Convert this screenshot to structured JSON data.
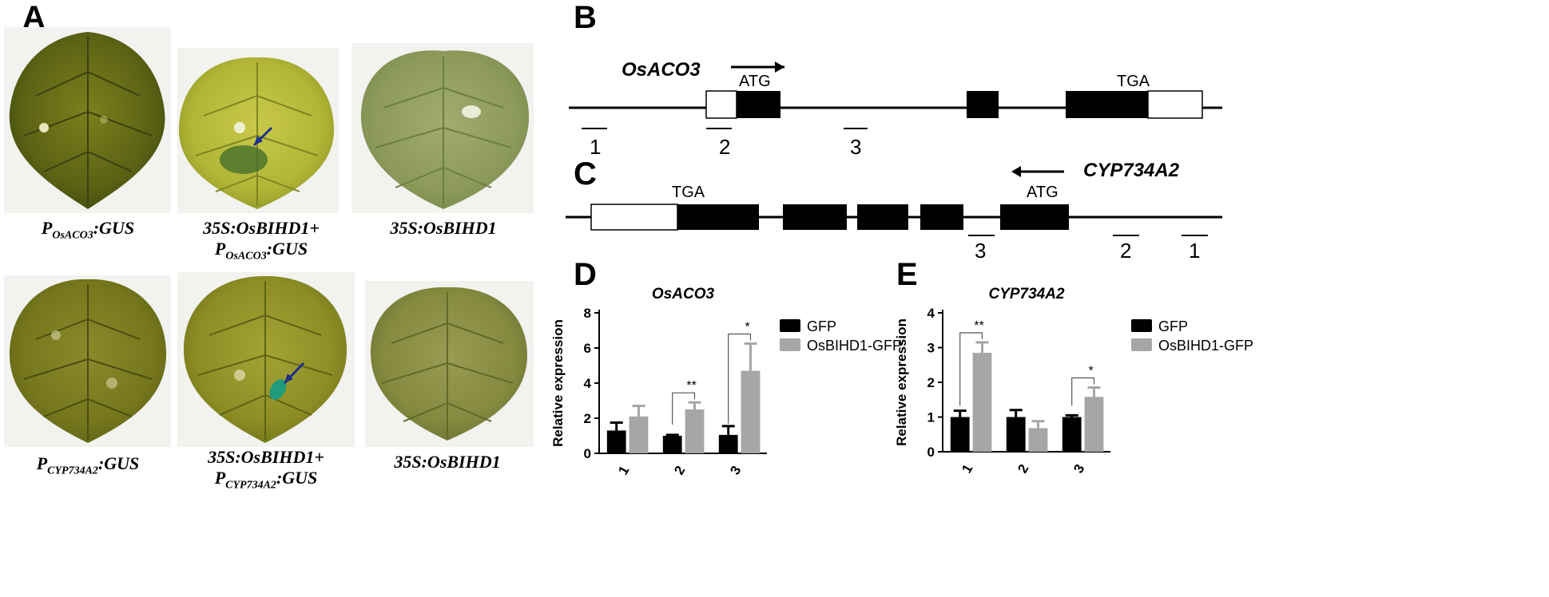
{
  "panels": {
    "a": "A",
    "b": "B",
    "c": "C",
    "d": "D",
    "e": "E"
  },
  "leaves": {
    "row1": [
      {
        "cap_main": "P",
        "cap_sub": "OsACO3",
        "cap_tail": ":GUS",
        "cap_line2": ""
      },
      {
        "cap_line1": "35S:OsBIHD1+",
        "cap_main": "P",
        "cap_sub": "OsACO3",
        "cap_tail": ":GUS"
      },
      {
        "cap_main": "35S:OsBIHD1"
      }
    ],
    "row2": [
      {
        "cap_main": "P",
        "cap_sub": "CYP734A2",
        "cap_tail": ":GUS"
      },
      {
        "cap_line1": "35S:OsBIHD1+",
        "cap_main": "P",
        "cap_sub": "CYP734A2",
        "cap_tail": ":GUS"
      },
      {
        "cap_main": "35S:OsBIHD1"
      }
    ]
  },
  "gene_b": {
    "name": "OsACO3",
    "start_codon": "ATG",
    "stop_codon": "TGA",
    "primers": [
      "1",
      "2",
      "3"
    ]
  },
  "gene_c": {
    "name": "CYP734A2",
    "start_codon": "ATG",
    "stop_codon": "TGA",
    "primers": [
      "3",
      "2",
      "1"
    ]
  },
  "colors": {
    "gfp": "#000000",
    "osbihd1_gfp": "#a6a6a6",
    "exon": "#000000",
    "utr": "#ffffff"
  },
  "chart_data": [
    {
      "type": "bar",
      "title": "OsACO3",
      "ylabel": "Relative expression",
      "categories": [
        "1",
        "2",
        "3"
      ],
      "ylim": [
        0,
        8
      ],
      "yticks": [
        "0",
        "2",
        "4",
        "6",
        "8"
      ],
      "series": [
        {
          "name": "GFP",
          "values": [
            1.3,
            1.0,
            1.05
          ],
          "errors": [
            0.45,
            0.05,
            0.5
          ]
        },
        {
          "name": "OsBIHD1-GFP",
          "values": [
            2.1,
            2.5,
            4.7
          ],
          "errors": [
            0.6,
            0.4,
            1.55
          ]
        }
      ],
      "significance": [
        "",
        "**",
        "*"
      ],
      "legend": "right"
    },
    {
      "type": "bar",
      "title": "CYP734A2",
      "ylabel": "Relative expression",
      "categories": [
        "1",
        "2",
        "3"
      ],
      "ylim": [
        0,
        4
      ],
      "yticks": [
        "0",
        "1",
        "2",
        "3",
        "4"
      ],
      "series": [
        {
          "name": "GFP",
          "values": [
            1.0,
            1.0,
            1.0
          ],
          "errors": [
            0.18,
            0.2,
            0.05
          ]
        },
        {
          "name": "OsBIHD1-GFP",
          "values": [
            2.85,
            0.68,
            1.58
          ],
          "errors": [
            0.3,
            0.2,
            0.27
          ]
        }
      ],
      "significance": [
        "**",
        "",
        "*"
      ],
      "legend": "right"
    }
  ]
}
